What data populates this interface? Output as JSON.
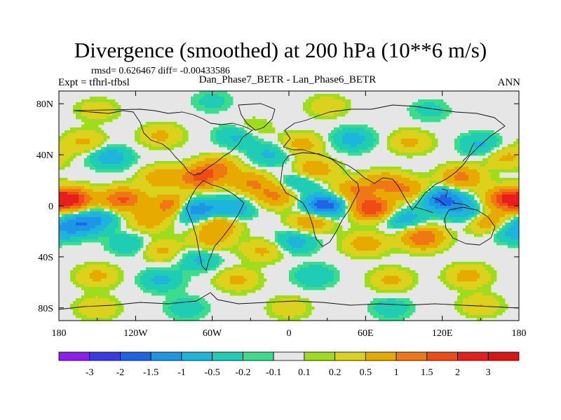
{
  "header": {
    "title": "Divergence (smoothed) at 200 hPa (10**6 m/s)",
    "rmsd_line": "rmsd= 0.626467 diff= -0.00433586",
    "expt_line": "Expt = tfhrl-tfbsl",
    "cases_line": "Dan_Phase7_BETR - Lan_Phase6_BETR",
    "season": "ANN"
  },
  "chart_data": {
    "type": "heatmap",
    "title": "Divergence (smoothed) at 200 hPa (10**6 m/s)",
    "xlabel": "",
    "ylabel": "",
    "xlim": [
      -180,
      180
    ],
    "ylim": [
      -90,
      90
    ],
    "x_ticks": [
      {
        "value": -180,
        "label": "180"
      },
      {
        "value": -120,
        "label": "120W"
      },
      {
        "value": -60,
        "label": "60W"
      },
      {
        "value": 0,
        "label": "0"
      },
      {
        "value": 60,
        "label": "60E"
      },
      {
        "value": 120,
        "label": "120E"
      },
      {
        "value": 180,
        "label": "180"
      }
    ],
    "y_ticks": [
      {
        "value": 80,
        "label": "80N"
      },
      {
        "value": 40,
        "label": "40N"
      },
      {
        "value": 0,
        "label": "0"
      },
      {
        "value": -40,
        "label": "40S"
      },
      {
        "value": -80,
        "label": "80S"
      }
    ],
    "colorbar": {
      "levels": [
        "-3",
        "-2",
        "-1.5",
        "-1",
        "-0.5",
        "-0.2",
        "-0.1",
        "0.1",
        "0.2",
        "0.5",
        "1",
        "1.5",
        "2",
        "3"
      ],
      "colors": [
        "#8c1ef2",
        "#3a3ae6",
        "#1e64e6",
        "#1e96e6",
        "#1eb4dc",
        "#1ecdb4",
        "#3cdc8c",
        "#e6e6e6",
        "#a0dc1e",
        "#dcd21e",
        "#e6aa00",
        "#f07814",
        "#f04b14",
        "#e61e1e",
        "#dc1414"
      ]
    },
    "anomalies": [
      {
        "lon": -170,
        "lat": 5,
        "value": 2.2
      },
      {
        "lon": -130,
        "lat": 5,
        "value": 1.6
      },
      {
        "lon": -150,
        "lat": -10,
        "value": -0.8
      },
      {
        "lon": -165,
        "lat": -15,
        "value": -1.2
      },
      {
        "lon": -110,
        "lat": -12,
        "value": 0.7
      },
      {
        "lon": -100,
        "lat": 22,
        "value": 0.8
      },
      {
        "lon": -70,
        "lat": 22,
        "value": 1.5
      },
      {
        "lon": -55,
        "lat": 30,
        "value": 1.0
      },
      {
        "lon": -30,
        "lat": 18,
        "value": 1.0
      },
      {
        "lon": -90,
        "lat": 0,
        "value": 1.6
      },
      {
        "lon": -45,
        "lat": -2,
        "value": -1.0
      },
      {
        "lon": -75,
        "lat": -3,
        "value": -1.8
      },
      {
        "lon": -55,
        "lat": -15,
        "value": 1.0
      },
      {
        "lon": -62,
        "lat": -28,
        "value": 0.6
      },
      {
        "lon": -70,
        "lat": -42,
        "value": -0.6
      },
      {
        "lon": -100,
        "lat": -35,
        "value": 0.6
      },
      {
        "lon": -125,
        "lat": -30,
        "value": -0.5
      },
      {
        "lon": -10,
        "lat": 8,
        "value": 1.1
      },
      {
        "lon": 8,
        "lat": 18,
        "value": -0.7
      },
      {
        "lon": 20,
        "lat": 28,
        "value": 0.9
      },
      {
        "lon": 28,
        "lat": 0,
        "value": -2.0
      },
      {
        "lon": 18,
        "lat": -12,
        "value": 1.0
      },
      {
        "lon": 5,
        "lat": -28,
        "value": -0.7
      },
      {
        "lon": -20,
        "lat": -35,
        "value": 0.6
      },
      {
        "lon": 50,
        "lat": 12,
        "value": 1.0
      },
      {
        "lon": 65,
        "lat": -2,
        "value": 2.0
      },
      {
        "lon": 75,
        "lat": 18,
        "value": 1.0
      },
      {
        "lon": 60,
        "lat": -30,
        "value": 0.8
      },
      {
        "lon": 90,
        "lat": -10,
        "value": -0.8
      },
      {
        "lon": 95,
        "lat": 12,
        "value": 0.9
      },
      {
        "lon": 105,
        "lat": -25,
        "value": 1.5
      },
      {
        "lon": 120,
        "lat": 5,
        "value": -1.8
      },
      {
        "lon": 135,
        "lat": 22,
        "value": 1.2
      },
      {
        "lon": 140,
        "lat": -5,
        "value": -0.9
      },
      {
        "lon": 155,
        "lat": -12,
        "value": 1.0
      },
      {
        "lon": 170,
        "lat": 5,
        "value": 1.9
      },
      {
        "lon": 175,
        "lat": -20,
        "value": -0.7
      },
      {
        "lon": -140,
        "lat": 38,
        "value": -0.8
      },
      {
        "lon": -160,
        "lat": 50,
        "value": 0.6
      },
      {
        "lon": -100,
        "lat": 55,
        "value": 0.6
      },
      {
        "lon": -40,
        "lat": 55,
        "value": -0.7
      },
      {
        "lon": -15,
        "lat": 40,
        "value": -0.6
      },
      {
        "lon": 10,
        "lat": 48,
        "value": 0.7
      },
      {
        "lon": 50,
        "lat": 52,
        "value": -0.7
      },
      {
        "lon": 95,
        "lat": 50,
        "value": 0.6
      },
      {
        "lon": 150,
        "lat": 48,
        "value": -0.6
      },
      {
        "lon": 170,
        "lat": 38,
        "value": 0.6
      },
      {
        "lon": -150,
        "lat": -55,
        "value": 0.6
      },
      {
        "lon": -100,
        "lat": -58,
        "value": -0.6
      },
      {
        "lon": -40,
        "lat": -58,
        "value": 0.6
      },
      {
        "lon": 20,
        "lat": -55,
        "value": -0.5
      },
      {
        "lon": 80,
        "lat": -58,
        "value": 0.6
      },
      {
        "lon": 140,
        "lat": -55,
        "value": 0.7
      },
      {
        "lon": -150,
        "lat": -80,
        "value": 0.5
      },
      {
        "lon": -80,
        "lat": -80,
        "value": -0.4
      },
      {
        "lon": 0,
        "lat": -80,
        "value": 0.4
      },
      {
        "lon": 80,
        "lat": -80,
        "value": -0.4
      },
      {
        "lon": 150,
        "lat": -78,
        "value": 0.5
      },
      {
        "lon": -150,
        "lat": 75,
        "value": 0.4
      },
      {
        "lon": -60,
        "lat": 82,
        "value": -0.3
      },
      {
        "lon": 30,
        "lat": 78,
        "value": 0.4
      },
      {
        "lon": 110,
        "lat": 75,
        "value": -0.3
      },
      {
        "lon": -30,
        "lat": 60,
        "value": 0.4
      }
    ]
  }
}
